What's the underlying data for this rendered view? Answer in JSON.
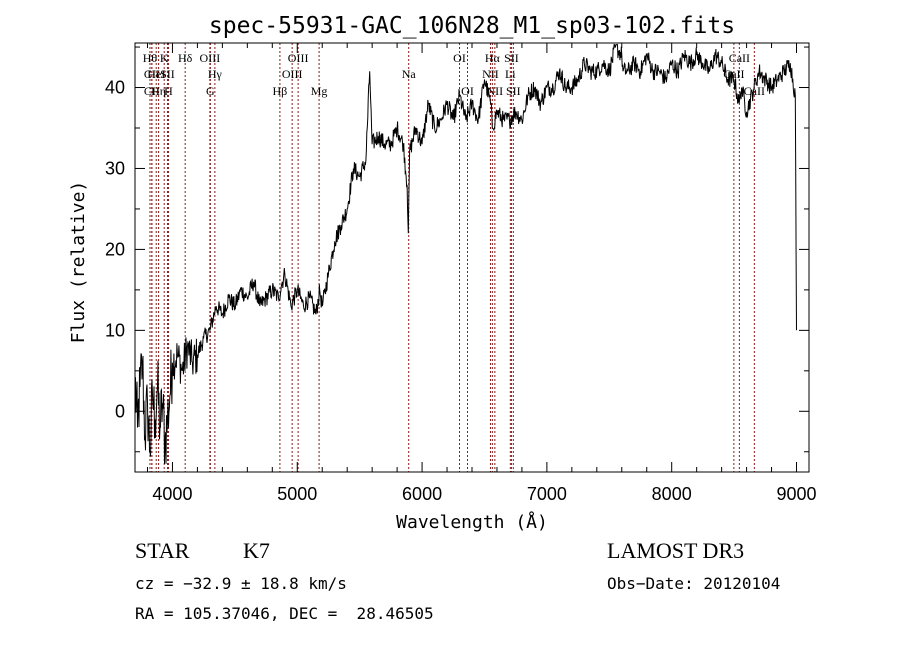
{
  "chart_data": {
    "type": "line",
    "title": "spec-55931-GAC_106N28_M1_sp03-102.fits",
    "xlabel": "Wavelength (Å)",
    "ylabel": "Flux (relative)",
    "xlim": [
      3700,
      9100
    ],
    "ylim": [
      -7.5,
      45.5
    ],
    "xticks": [
      4000,
      5000,
      6000,
      7000,
      8000,
      9000
    ],
    "yticks": [
      0,
      10,
      20,
      30,
      40
    ],
    "series": [
      {
        "name": "spectrum",
        "x": [
          3700,
          3720,
          3740,
          3760,
          3780,
          3800,
          3820,
          3840,
          3860,
          3880,
          3900,
          3920,
          3940,
          3960,
          3980,
          4000,
          4040,
          4080,
          4120,
          4160,
          4200,
          4250,
          4300,
          4350,
          4400,
          4450,
          4500,
          4550,
          4600,
          4650,
          4700,
          4750,
          4800,
          4850,
          4880,
          4900,
          4950,
          5000,
          5050,
          5100,
          5150,
          5180,
          5200,
          5250,
          5300,
          5350,
          5400,
          5450,
          5500,
          5550,
          5580,
          5600,
          5650,
          5700,
          5750,
          5800,
          5850,
          5880,
          5890,
          5900,
          5950,
          6000,
          6050,
          6100,
          6150,
          6200,
          6250,
          6300,
          6350,
          6400,
          6450,
          6500,
          6550,
          6563,
          6600,
          6650,
          6700,
          6750,
          6800,
          6850,
          6900,
          6950,
          7000,
          7050,
          7100,
          7150,
          7200,
          7250,
          7300,
          7350,
          7400,
          7450,
          7500,
          7550,
          7600,
          7610,
          7650,
          7700,
          7750,
          7800,
          7850,
          7900,
          7950,
          8000,
          8050,
          8100,
          8150,
          8200,
          8250,
          8300,
          8350,
          8400,
          8450,
          8500,
          8540,
          8560,
          8600,
          8660,
          8700,
          8750,
          8800,
          8850,
          8900,
          8950,
          8990,
          9000
        ],
        "values": [
          4,
          -2,
          3,
          6,
          -3,
          1,
          -5,
          2,
          -1,
          3,
          -2,
          1,
          -4,
          -1,
          2,
          6,
          7,
          5,
          8,
          6,
          7,
          9,
          10,
          13,
          12,
          14,
          13,
          15,
          14,
          16,
          13,
          14,
          15,
          14,
          16,
          17,
          13,
          15,
          13,
          14,
          12,
          15,
          13,
          17,
          21,
          23,
          25,
          30,
          29,
          31,
          42,
          33,
          34,
          33,
          33,
          35,
          33,
          28,
          22,
          32,
          35,
          33,
          38,
          35,
          36,
          38,
          36,
          39,
          36,
          38,
          36,
          41,
          38,
          35,
          37,
          36,
          36,
          37,
          36,
          39,
          40,
          38,
          40,
          40,
          42,
          40,
          40,
          41,
          43,
          42,
          42,
          43,
          42,
          45,
          44,
          42,
          42,
          43,
          42,
          44,
          42,
          42,
          41,
          43,
          42,
          44,
          43,
          44,
          43,
          42,
          44,
          43,
          41,
          41,
          38,
          40,
          37,
          40,
          42,
          41,
          40,
          41,
          42,
          43,
          39,
          10
        ]
      }
    ],
    "lines": [
      {
        "x": 3820,
        "label": "Hθ",
        "row": 0
      },
      {
        "x": 3835,
        "label": "CII",
        "row": 1
      },
      {
        "x": 3835,
        "label": "CII",
        "row": 2
      },
      {
        "x": 3870,
        "label": "HeI",
        "row": 1
      },
      {
        "x": 3889,
        "label": "Hη",
        "row": 2
      },
      {
        "x": 3934,
        "label": "K",
        "row": 0
      },
      {
        "x": 3960,
        "label": "SII",
        "row": 1
      },
      {
        "x": 3968,
        "label": "H",
        "row": 2
      },
      {
        "x": 4102,
        "label": "Hδ",
        "row": 0
      },
      {
        "x": 4300,
        "label": "OIII",
        "row": 0
      },
      {
        "x": 4340,
        "label": "Hγ",
        "row": 1
      },
      {
        "x": 4304,
        "label": "G",
        "row": 2
      },
      {
        "x": 4861,
        "label": "Hβ",
        "row": 2
      },
      {
        "x": 4959,
        "label": "OIII",
        "row": 1
      },
      {
        "x": 5007,
        "label": "OIII",
        "row": 0
      },
      {
        "x": 5175,
        "label": "Mg",
        "row": 2
      },
      {
        "x": 5893,
        "label": "Na",
        "row": 1
      },
      {
        "x": 6300,
        "label": "OI",
        "row": 0
      },
      {
        "x": 6364,
        "label": "OI",
        "row": 2
      },
      {
        "x": 6548,
        "label": "NII",
        "row": 1
      },
      {
        "x": 6563,
        "label": "Hα",
        "row": 0
      },
      {
        "x": 6583,
        "label": "NII",
        "row": 2
      },
      {
        "x": 6707,
        "label": "Li",
        "row": 1
      },
      {
        "x": 6716,
        "label": "SII",
        "row": 0
      },
      {
        "x": 6731,
        "label": "SII",
        "row": 2
      },
      {
        "x": 8498,
        "label": "CaII",
        "row": 1
      },
      {
        "x": 8542,
        "label": "CaII",
        "row": 0
      },
      {
        "x": 8662,
        "label": "CaII",
        "row": 2
      }
    ]
  },
  "info": {
    "class": "STAR",
    "subclass": "K7",
    "survey": "LAMOST DR3",
    "cz": "cz = −32.9 ± 18.8 km/s",
    "obsdate": "Obs−Date: 20120104",
    "coords": "RA = 105.37046, DEC =  28.46505"
  },
  "colors": {
    "line_marker": "#8b1a1a",
    "spectrum": "#000000"
  }
}
